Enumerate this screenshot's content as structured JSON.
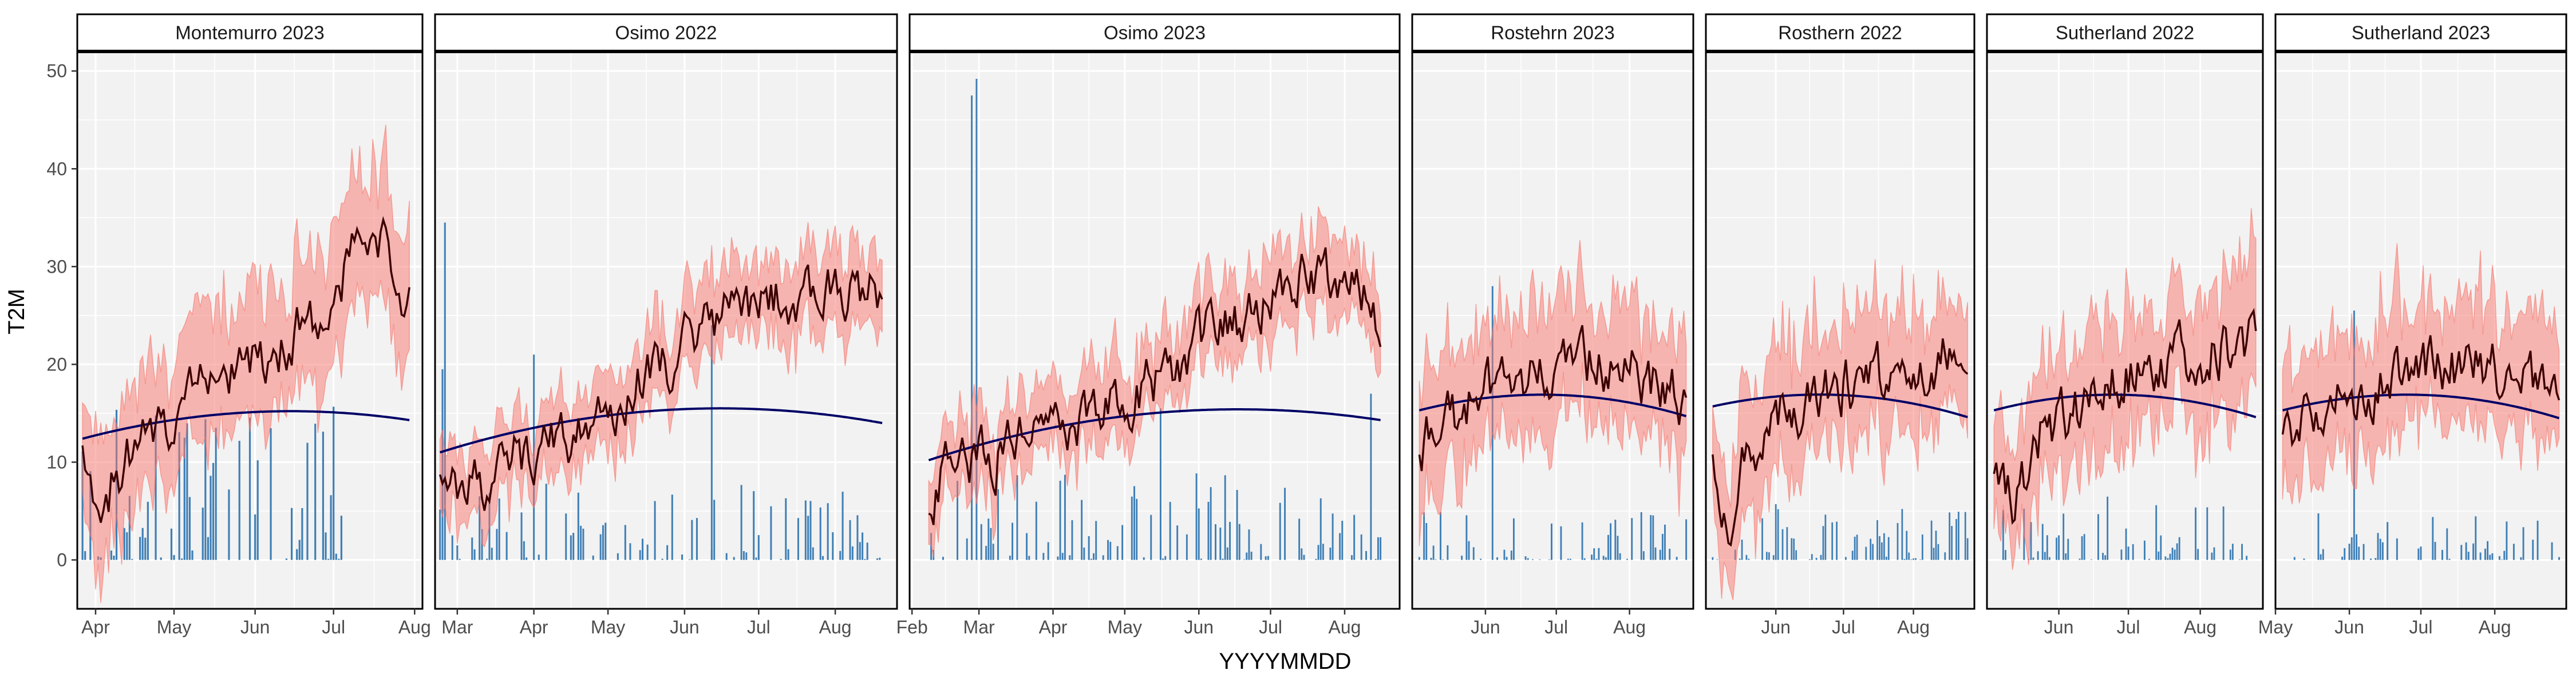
{
  "chart_data": {
    "type": "line",
    "xlabel": "YYYYMMDD",
    "ylabel": "T2M",
    "ylim": [
      -5,
      52
    ],
    "yticks": [
      0,
      10,
      20,
      30,
      40,
      50
    ],
    "grid": true,
    "colors": {
      "band": "#f8766d",
      "mean_line": "#3b0000",
      "trend_line": "#000066",
      "precip_bars": "#3f7fb5",
      "panel_bg": "#f2f2f2",
      "grid": "#ffffff"
    },
    "panels": [
      {
        "title": "Montemurro 2023",
        "x_range": [
          "2023-03-25",
          "2023-08-04"
        ],
        "x_ticks": [
          {
            "date": "2023-04-01",
            "label": "Apr"
          },
          {
            "date": "2023-05-01",
            "label": "May"
          },
          {
            "date": "2023-06-01",
            "label": "Jun"
          },
          {
            "date": "2023-07-01",
            "label": "Jul"
          },
          {
            "date": "2023-08-01",
            "label": "Aug"
          }
        ],
        "data_range": [
          "2023-03-27",
          "2023-07-30"
        ],
        "trend": [
          {
            "date": "2023-03-27",
            "value": 12.4
          },
          {
            "date": "2023-06-10",
            "value": 15.2
          },
          {
            "date": "2023-07-30",
            "value": 14.3
          }
        ],
        "mean_keypoints": [
          {
            "date": "2023-03-27",
            "value": 13
          },
          {
            "date": "2023-04-03",
            "value": 6
          },
          {
            "date": "2023-04-12",
            "value": 10
          },
          {
            "date": "2023-04-25",
            "value": 14
          },
          {
            "date": "2023-05-10",
            "value": 17
          },
          {
            "date": "2023-05-25",
            "value": 20
          },
          {
            "date": "2023-06-10",
            "value": 22
          },
          {
            "date": "2023-06-28",
            "value": 26
          },
          {
            "date": "2023-07-12",
            "value": 32
          },
          {
            "date": "2023-07-20",
            "value": 33
          },
          {
            "date": "2023-07-26",
            "value": 25
          },
          {
            "date": "2023-07-30",
            "value": 29
          }
        ],
        "band_halfwidth": 5,
        "precip_max": 16,
        "precip_end": "2023-07-05",
        "seed": 11
      },
      {
        "title": "Osimo 2022",
        "x_range": [
          "2022-02-20",
          "2022-08-26"
        ],
        "x_ticks": [
          {
            "date": "2022-03-01",
            "label": "Mar"
          },
          {
            "date": "2022-04-01",
            "label": "Apr"
          },
          {
            "date": "2022-05-01",
            "label": "May"
          },
          {
            "date": "2022-06-01",
            "label": "Jun"
          },
          {
            "date": "2022-07-01",
            "label": "Jul"
          },
          {
            "date": "2022-08-01",
            "label": "Aug"
          }
        ],
        "data_range": [
          "2022-02-22",
          "2022-08-20"
        ],
        "trend": [
          {
            "date": "2022-02-22",
            "value": 11.0
          },
          {
            "date": "2022-06-15",
            "value": 15.5
          },
          {
            "date": "2022-08-20",
            "value": 14.0
          }
        ],
        "mean_keypoints": [
          {
            "date": "2022-02-22",
            "value": 10
          },
          {
            "date": "2022-03-05",
            "value": 7
          },
          {
            "date": "2022-03-25",
            "value": 10
          },
          {
            "date": "2022-04-15",
            "value": 13
          },
          {
            "date": "2022-05-05",
            "value": 16
          },
          {
            "date": "2022-05-25",
            "value": 20
          },
          {
            "date": "2022-06-15",
            "value": 25
          },
          {
            "date": "2022-07-05",
            "value": 27
          },
          {
            "date": "2022-07-25",
            "value": 28
          },
          {
            "date": "2022-08-20",
            "value": 27
          }
        ],
        "band_halfwidth": 3,
        "precip_max": 8,
        "spikes": [
          {
            "date": "2022-02-24",
            "value": 34.5
          },
          {
            "date": "2022-02-23",
            "value": 19.5
          },
          {
            "date": "2022-04-01",
            "value": 21
          },
          {
            "date": "2022-06-12",
            "value": 24
          }
        ],
        "seed": 23
      },
      {
        "title": "Osimo 2023",
        "x_range": [
          "2023-01-31",
          "2023-08-24"
        ],
        "x_ticks": [
          {
            "date": "2023-02-01",
            "label": "Feb"
          },
          {
            "date": "2023-03-01",
            "label": "Mar"
          },
          {
            "date": "2023-04-01",
            "label": "Apr"
          },
          {
            "date": "2023-05-01",
            "label": "May"
          },
          {
            "date": "2023-06-01",
            "label": "Jun"
          },
          {
            "date": "2023-07-01",
            "label": "Jul"
          },
          {
            "date": "2023-08-01",
            "label": "Aug"
          }
        ],
        "data_range": [
          "2023-02-08",
          "2023-08-16"
        ],
        "trend": [
          {
            "date": "2023-02-08",
            "value": 10.2
          },
          {
            "date": "2023-06-20",
            "value": 15.4
          },
          {
            "date": "2023-08-16",
            "value": 14.3
          }
        ],
        "mean_keypoints": [
          {
            "date": "2023-02-08",
            "value": 6
          },
          {
            "date": "2023-02-20",
            "value": 10
          },
          {
            "date": "2023-03-10",
            "value": 11
          },
          {
            "date": "2023-04-01",
            "value": 13
          },
          {
            "date": "2023-04-20",
            "value": 15
          },
          {
            "date": "2023-05-10",
            "value": 18
          },
          {
            "date": "2023-06-01",
            "value": 22
          },
          {
            "date": "2023-06-20",
            "value": 25
          },
          {
            "date": "2023-07-10",
            "value": 28
          },
          {
            "date": "2023-07-25",
            "value": 29
          },
          {
            "date": "2023-08-16",
            "value": 25
          }
        ],
        "band_halfwidth": 3,
        "precip_max": 9,
        "spikes": [
          {
            "date": "2023-02-26",
            "value": 47.5
          },
          {
            "date": "2023-02-28",
            "value": 49.2
          },
          {
            "date": "2023-05-16",
            "value": 15.5
          },
          {
            "date": "2023-08-12",
            "value": 17
          }
        ],
        "seed": 37
      },
      {
        "title": "Rostehrn 2023",
        "x_range": [
          "2023-05-01",
          "2023-08-28"
        ],
        "x_ticks": [
          {
            "date": "2023-06-01",
            "label": "Jun"
          },
          {
            "date": "2023-07-01",
            "label": "Jul"
          },
          {
            "date": "2023-08-01",
            "label": "Aug"
          }
        ],
        "data_range": [
          "2023-05-04",
          "2023-08-25"
        ],
        "trend": [
          {
            "date": "2023-05-04",
            "value": 15.3
          },
          {
            "date": "2023-06-25",
            "value": 16.9
          },
          {
            "date": "2023-08-25",
            "value": 14.7
          }
        ],
        "mean_keypoints": [
          {
            "date": "2023-05-04",
            "value": 12
          },
          {
            "date": "2023-05-20",
            "value": 15
          },
          {
            "date": "2023-06-10",
            "value": 18
          },
          {
            "date": "2023-07-01",
            "value": 19
          },
          {
            "date": "2023-07-25",
            "value": 20
          },
          {
            "date": "2023-08-25",
            "value": 16
          }
        ],
        "band_halfwidth": 5,
        "precip_max": 5,
        "spikes": [
          {
            "date": "2023-06-04",
            "value": 28
          }
        ],
        "seed": 41
      },
      {
        "title": "Rosthern 2022",
        "x_range": [
          "2022-05-01",
          "2022-08-28"
        ],
        "x_ticks": [
          {
            "date": "2022-06-01",
            "label": "Jun"
          },
          {
            "date": "2022-07-01",
            "label": "Jul"
          },
          {
            "date": "2022-08-01",
            "label": "Aug"
          }
        ],
        "data_range": [
          "2022-05-04",
          "2022-08-25"
        ],
        "trend": [
          {
            "date": "2022-05-04",
            "value": 15.7
          },
          {
            "date": "2022-06-25",
            "value": 16.9
          },
          {
            "date": "2022-08-25",
            "value": 14.6
          }
        ],
        "mean_keypoints": [
          {
            "date": "2022-05-04",
            "value": 12
          },
          {
            "date": "2022-05-10",
            "value": 3
          },
          {
            "date": "2022-05-20",
            "value": 11
          },
          {
            "date": "2022-06-10",
            "value": 16
          },
          {
            "date": "2022-07-01",
            "value": 18
          },
          {
            "date": "2022-07-25",
            "value": 19
          },
          {
            "date": "2022-08-25",
            "value": 22
          }
        ],
        "band_halfwidth": 5,
        "precip_max": 6,
        "seed": 53
      },
      {
        "title": "Sutherland 2022",
        "x_range": [
          "2022-05-01",
          "2022-08-28"
        ],
        "x_ticks": [
          {
            "date": "2022-06-01",
            "label": "Jun"
          },
          {
            "date": "2022-07-01",
            "label": "Jul"
          },
          {
            "date": "2022-08-01",
            "label": "Aug"
          }
        ],
        "data_range": [
          "2022-05-04",
          "2022-08-25"
        ],
        "trend": [
          {
            "date": "2022-05-04",
            "value": 15.3
          },
          {
            "date": "2022-06-25",
            "value": 16.9
          },
          {
            "date": "2022-08-25",
            "value": 14.6
          }
        ],
        "mean_keypoints": [
          {
            "date": "2022-05-04",
            "value": 10
          },
          {
            "date": "2022-05-12",
            "value": 6
          },
          {
            "date": "2022-05-25",
            "value": 13
          },
          {
            "date": "2022-06-15",
            "value": 17
          },
          {
            "date": "2022-07-05",
            "value": 20
          },
          {
            "date": "2022-07-25",
            "value": 21
          },
          {
            "date": "2022-08-25",
            "value": 22
          }
        ],
        "band_halfwidth": 5,
        "precip_max": 7,
        "seed": 67
      },
      {
        "title": "Sutherland 2023",
        "x_range": [
          "2023-05-01",
          "2023-08-31"
        ],
        "x_ticks": [
          {
            "date": "2023-05-01",
            "label": "May"
          },
          {
            "date": "2023-06-01",
            "label": "Jun"
          },
          {
            "date": "2023-07-01",
            "label": "Jul"
          },
          {
            "date": "2023-08-01",
            "label": "Aug"
          }
        ],
        "data_range": [
          "2023-05-04",
          "2023-08-28"
        ],
        "trend": [
          {
            "date": "2023-05-04",
            "value": 15.3
          },
          {
            "date": "2023-06-25",
            "value": 16.9
          },
          {
            "date": "2023-08-28",
            "value": 14.5
          }
        ],
        "mean_keypoints": [
          {
            "date": "2023-05-04",
            "value": 14
          },
          {
            "date": "2023-05-20",
            "value": 16
          },
          {
            "date": "2023-06-10",
            "value": 18
          },
          {
            "date": "2023-07-01",
            "value": 19
          },
          {
            "date": "2023-07-25",
            "value": 20
          },
          {
            "date": "2023-08-28",
            "value": 16
          }
        ],
        "band_halfwidth": 5,
        "precip_max": 5,
        "spikes": [
          {
            "date": "2023-06-03",
            "value": 25.5
          }
        ],
        "seed": 79
      }
    ]
  }
}
